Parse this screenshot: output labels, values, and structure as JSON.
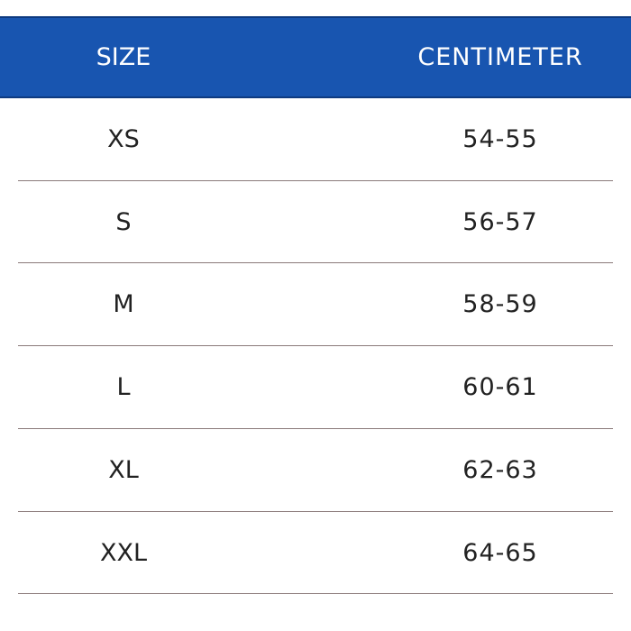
{
  "table": {
    "header": [
      "SIZE",
      "CENTIMETER"
    ],
    "rows": [
      [
        "XS",
        "54-55"
      ],
      [
        "S",
        "56-57"
      ],
      [
        "M",
        "58-59"
      ],
      [
        "L",
        "60-61"
      ],
      [
        "XL",
        "62-63"
      ],
      [
        "XXL",
        "64-65"
      ]
    ]
  }
}
